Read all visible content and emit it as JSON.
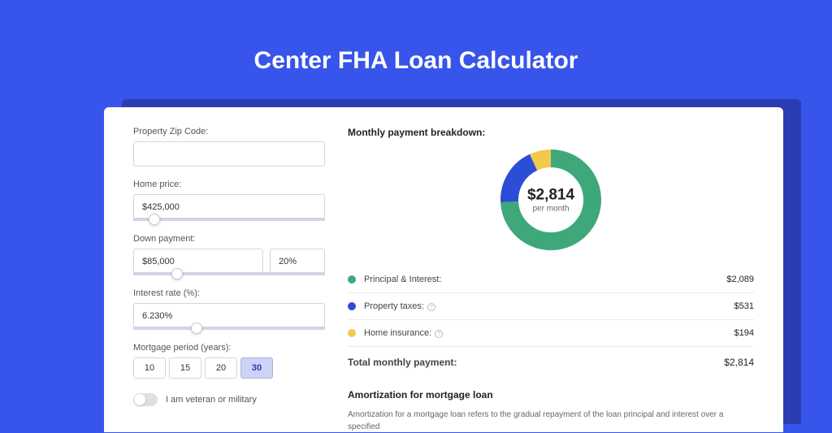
{
  "page": {
    "title": "Center FHA Loan Calculator",
    "background_color": "#3755eb",
    "shadow_color": "#2a3db0"
  },
  "form": {
    "zip": {
      "label": "Property Zip Code:",
      "value": ""
    },
    "home_price": {
      "label": "Home price:",
      "value": "$425,000",
      "slider_pct": 8
    },
    "down_payment": {
      "label": "Down payment:",
      "value": "$85,000",
      "pct": "20%",
      "slider_pct": 20
    },
    "interest_rate": {
      "label": "Interest rate (%):",
      "value": "6.230%",
      "slider_pct": 30
    },
    "mortgage_period": {
      "label": "Mortgage period (years):",
      "options": [
        "10",
        "15",
        "20",
        "30"
      ],
      "selected": "30"
    },
    "veteran": {
      "label": "I am veteran or military",
      "on": false
    }
  },
  "breakdown": {
    "title": "Monthly payment breakdown:",
    "center_amount": "$2,814",
    "center_sub": "per month",
    "donut": {
      "segments": [
        {
          "name": "principal_interest",
          "color": "#3fa87a",
          "pct": 74.2
        },
        {
          "name": "property_taxes",
          "color": "#2a4fd6",
          "pct": 18.9
        },
        {
          "name": "home_insurance",
          "color": "#f2c94c",
          "pct": 6.9
        }
      ],
      "thickness": 22,
      "radius": 62
    },
    "items": [
      {
        "label": "Principal & Interest:",
        "color": "#3fa87a",
        "value": "$2,089",
        "info": false
      },
      {
        "label": "Property taxes:",
        "color": "#2a4fd6",
        "value": "$531",
        "info": true
      },
      {
        "label": "Home insurance:",
        "color": "#f2c94c",
        "value": "$194",
        "info": true
      }
    ],
    "total": {
      "label": "Total monthly payment:",
      "value": "$2,814"
    }
  },
  "amortization": {
    "title": "Amortization for mortgage loan",
    "text": "Amortization for a mortgage loan refers to the gradual repayment of the loan principal and interest over a specified"
  }
}
